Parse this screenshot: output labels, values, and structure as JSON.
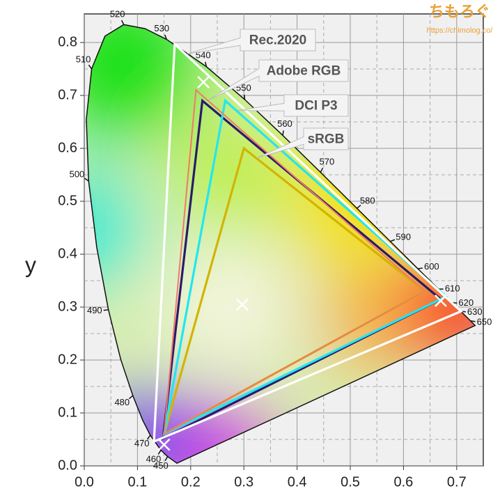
{
  "chart_data": {
    "type": "chromaticity",
    "ylabel": "y",
    "watermark": {
      "title": "ちもろぐ",
      "url": "https://chimolog.co/"
    },
    "xlim": [
      0,
      0.75
    ],
    "ylim": [
      0,
      0.854
    ],
    "xticks": [
      {
        "value": 0,
        "label": "0.0"
      },
      {
        "value": 0.1,
        "label": "0.1"
      },
      {
        "value": 0.2,
        "label": "0.2"
      },
      {
        "value": 0.3,
        "label": "0.3"
      },
      {
        "value": 0.4,
        "label": "0.4"
      },
      {
        "value": 0.5,
        "label": "0.5"
      },
      {
        "value": 0.6,
        "label": "0.6"
      },
      {
        "value": 0.7,
        "label": "0.7"
      }
    ],
    "yticks": [
      {
        "value": 0,
        "label": "0.0"
      },
      {
        "value": 0.1,
        "label": "0.1"
      },
      {
        "value": 0.2,
        "label": "0.2"
      },
      {
        "value": 0.3,
        "label": "0.3"
      },
      {
        "value": 0.4,
        "label": "0.4"
      },
      {
        "value": 0.5,
        "label": "0.5"
      },
      {
        "value": 0.6,
        "label": "0.6"
      },
      {
        "value": 0.7,
        "label": "0.7"
      },
      {
        "value": 0.8,
        "label": "0.8"
      }
    ],
    "minor_xticks": [
      0.05,
      0.15,
      0.25,
      0.35,
      0.45,
      0.55,
      0.65
    ],
    "minor_yticks": [
      0.05,
      0.15,
      0.25,
      0.35,
      0.45,
      0.55,
      0.65,
      0.75
    ],
    "grid": true,
    "locus": {
      "wavelengths": [
        null,
        450,
        460,
        470,
        null,
        480,
        null,
        490,
        null,
        500,
        null,
        510,
        null,
        520,
        null,
        530,
        540,
        550,
        560,
        570,
        580,
        590,
        600,
        610,
        620,
        630,
        650,
        null
      ],
      "x": [
        0.1741,
        0.1566,
        0.144,
        0.1241,
        0.1096,
        0.0913,
        0.0687,
        0.0454,
        0.0235,
        0.0082,
        0.0039,
        0.0139,
        0.0389,
        0.0743,
        0.1142,
        0.1547,
        0.2296,
        0.3016,
        0.3731,
        0.4441,
        0.5125,
        0.5752,
        0.627,
        0.6658,
        0.6915,
        0.7079,
        0.726,
        0.7347
      ],
      "y": [
        0.005,
        0.0177,
        0.0297,
        0.0578,
        0.0868,
        0.1327,
        0.2007,
        0.295,
        0.4127,
        0.5384,
        0.6548,
        0.7502,
        0.812,
        0.8338,
        0.8262,
        0.8059,
        0.7543,
        0.6923,
        0.6245,
        0.5547,
        0.4866,
        0.4242,
        0.3725,
        0.334,
        0.3083,
        0.292,
        0.274,
        0.2653
      ]
    },
    "series": [
      {
        "name": "Rec.2020",
        "color": "#ffffff",
        "x": [
          0.708,
          0.17,
          0.131
        ],
        "y": [
          0.292,
          0.797,
          0.046
        ]
      },
      {
        "name": "Adobe RGB",
        "color": "#f07a6a",
        "x": [
          0.64,
          0.21,
          0.15
        ],
        "y": [
          0.33,
          0.71,
          0.06
        ]
      },
      {
        "name": "DCI P3",
        "color": "#22e6f0",
        "x": [
          0.68,
          0.265,
          0.15
        ],
        "y": [
          0.32,
          0.69,
          0.06
        ]
      },
      {
        "name": "sRGB",
        "color": "#d2b400",
        "x": [
          0.64,
          0.3,
          0.15
        ],
        "y": [
          0.33,
          0.6,
          0.06
        ]
      },
      {
        "color": "#2b1a6b",
        "x": [
          0.67,
          0.222,
          0.148
        ],
        "y": [
          0.315,
          0.69,
          0.052
        ]
      }
    ],
    "markers": {
      "color": "#ffffff",
      "x": [
        0.224,
        0.67,
        0.15,
        0.297
      ],
      "y": [
        0.725,
        0.312,
        0.04,
        0.305
      ]
    }
  }
}
